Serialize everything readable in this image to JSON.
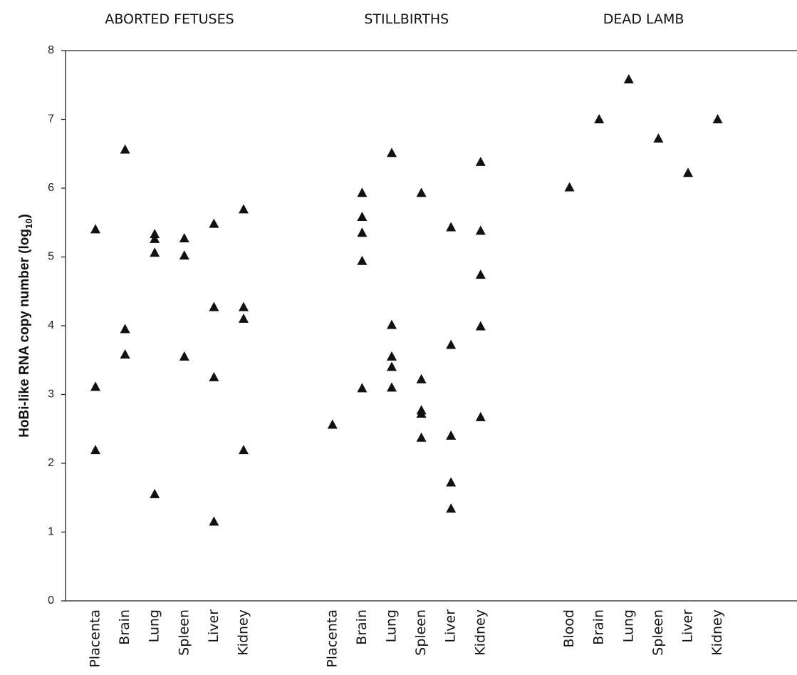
{
  "chart_data": {
    "type": "scatter",
    "group_titles": [
      "ABORTED FETUSES",
      "STILLBIRTHS",
      "DEAD LAMB"
    ],
    "ylabel": [
      "HoBi-like RNA copy number (log",
      "10",
      ")"
    ],
    "categories": [
      "Placenta",
      "Brain",
      "Lung",
      "Spleen",
      "Liver",
      "Kidney",
      null,
      null,
      "Placenta",
      "Brain",
      "Lung",
      "Spleen",
      "Liver",
      "Kidney",
      null,
      null,
      "Blood",
      "Brain",
      "Lung",
      "Spleen",
      "Liver",
      "Kidney"
    ],
    "values": [
      [
        5.4,
        3.11,
        2.19
      ],
      [
        6.56,
        3.95,
        3.58
      ],
      [
        5.33,
        5.26,
        5.06,
        1.55
      ],
      [
        5.27,
        5.02,
        3.55
      ],
      [
        5.48,
        4.27,
        3.25,
        1.15
      ],
      [
        5.69,
        4.27,
        4.1,
        2.19
      ],
      null,
      null,
      [
        2.56
      ],
      [
        5.93,
        5.58,
        5.35,
        4.94,
        3.09
      ],
      [
        6.51,
        4.01,
        3.55,
        3.4,
        3.1
      ],
      [
        5.93,
        3.22,
        2.77,
        2.72,
        2.37
      ],
      [
        5.43,
        3.72,
        2.4,
        1.72,
        1.34
      ],
      [
        6.38,
        5.38,
        4.74,
        3.99,
        2.67
      ],
      null,
      null,
      [
        6.01
      ],
      [
        7.0
      ],
      [
        7.58
      ],
      [
        6.72
      ],
      [
        6.22
      ],
      [
        7.0
      ]
    ],
    "marker": "triangle",
    "color": "#111111",
    "ylim": [
      0,
      8
    ],
    "yticks": [
      0,
      1,
      2,
      3,
      4,
      5,
      6,
      7,
      8
    ]
  }
}
